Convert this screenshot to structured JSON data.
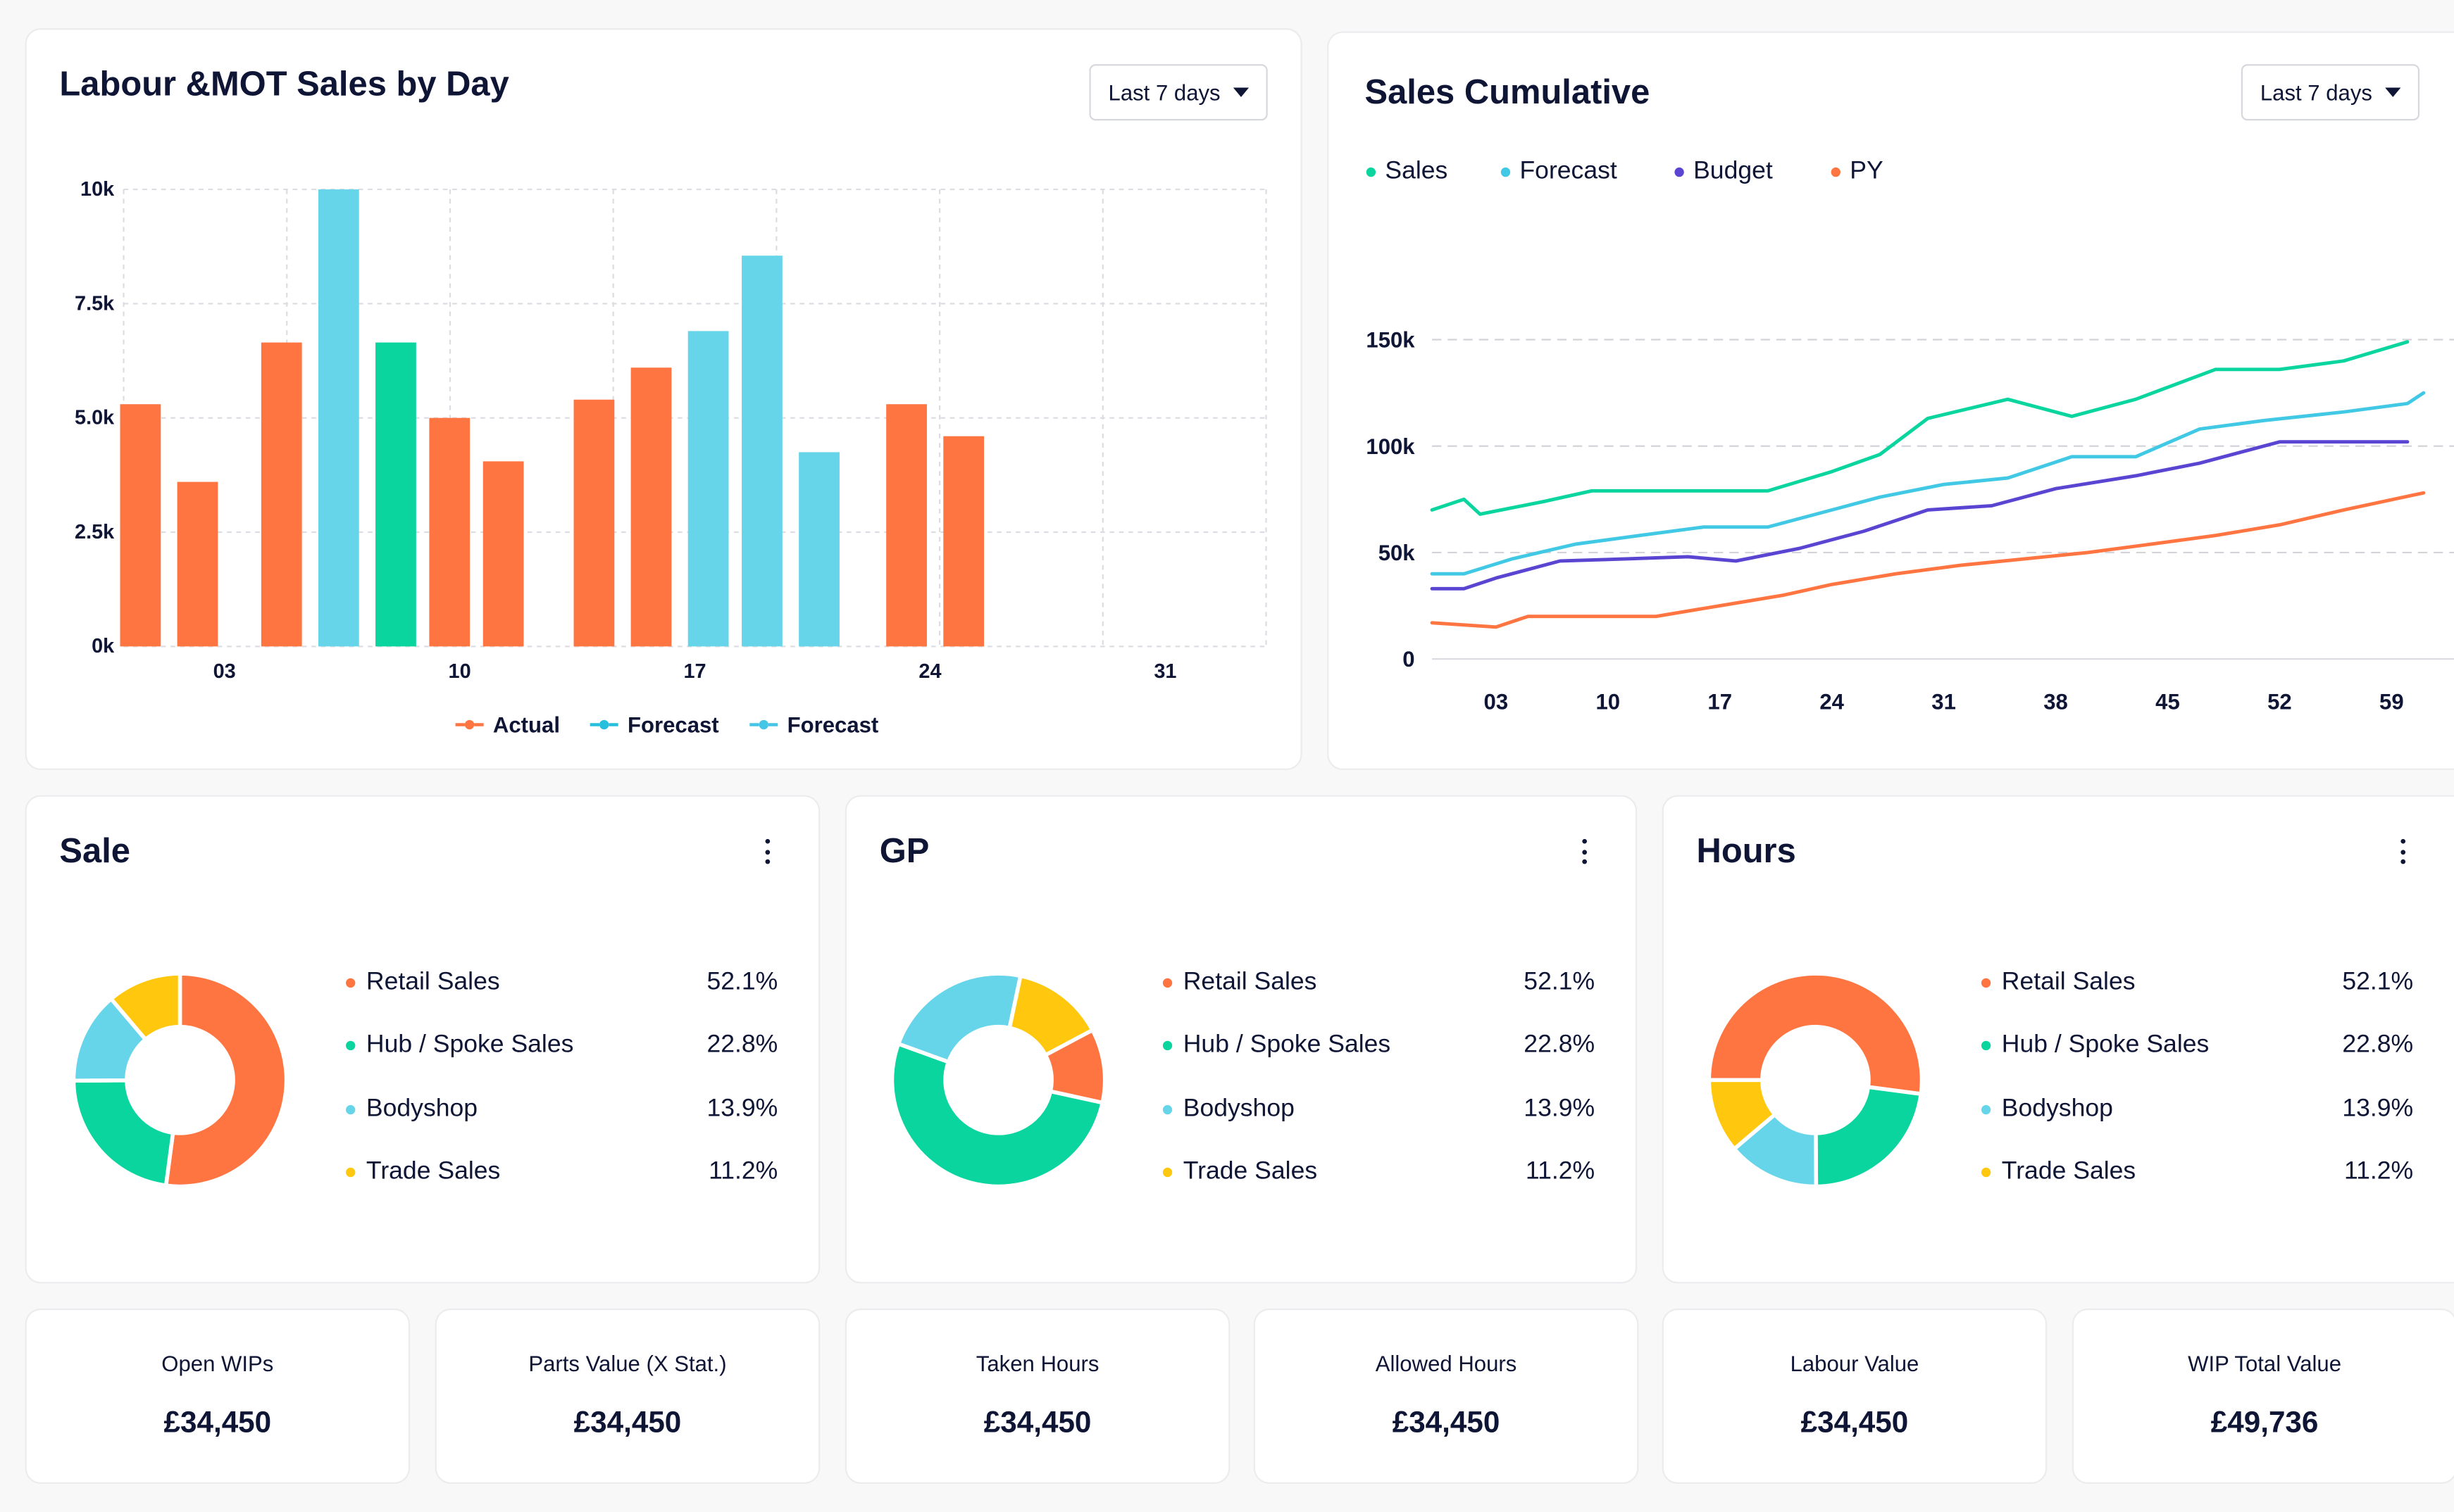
{
  "colors": {
    "orange": "#ff7541",
    "cyan": "#66d5ea",
    "green": "#0ad59e",
    "purple": "#5945d1",
    "yellow": "#ffc80f",
    "navy": "#0f1535"
  },
  "labour_card": {
    "title": "Labour &MOT Sales by Day",
    "dropdown_label": "Last 7 days",
    "legend": [
      {
        "label": "Actual",
        "color": "#ff7541"
      },
      {
        "label": "Forecast",
        "color": "#27bfdc"
      },
      {
        "label": "Forecast",
        "color": "#45c6e6"
      }
    ]
  },
  "cumulative_card": {
    "title": "Sales Cumulative",
    "dropdown_label": "Last 7 days",
    "legend": [
      {
        "label": "Sales",
        "color": "#0ad59e"
      },
      {
        "label": "Forecast",
        "color": "#40c8e4"
      },
      {
        "label": "Budget",
        "color": "#5945d1"
      },
      {
        "label": "PY",
        "color": "#ff7541"
      }
    ]
  },
  "donut_cards": [
    {
      "title": "Sale",
      "icon": "kebab-menu-icon"
    },
    {
      "title": "GP",
      "icon": "kebab-menu-icon"
    },
    {
      "title": "Hours",
      "icon": "kebab-menu-icon"
    }
  ],
  "donut_legend": [
    {
      "label": "Retail Sales",
      "value": "52.1%",
      "color": "#ff7541"
    },
    {
      "label": "Hub / Spoke Sales",
      "value": "22.8%",
      "color": "#0ad59e"
    },
    {
      "label": "Bodyshop",
      "value": "13.9%",
      "color": "#66d5ea"
    },
    {
      "label": "Trade Sales",
      "value": "11.2%",
      "color": "#ffc80f"
    }
  ],
  "stats": [
    {
      "label": "Open WIPs",
      "value": "£34,450"
    },
    {
      "label": "Parts Value (X Stat.)",
      "value": "£34,450"
    },
    {
      "label": "Taken Hours",
      "value": "£34,450"
    },
    {
      "label": "Allowed Hours",
      "value": "£34,450"
    },
    {
      "label": "Labour Value",
      "value": "£34,450"
    },
    {
      "label": "WIP Total Value",
      "value": "£49,736"
    }
  ],
  "chart_data": [
    {
      "type": "bar",
      "title": "Labour &MOT Sales by Day",
      "ylim": [
        0,
        10000
      ],
      "y_ticks": [
        "0k",
        "2.5k",
        "5.0k",
        "7.5k",
        "10k"
      ],
      "y_tick_values": [
        0,
        2500,
        5000,
        7500,
        10000
      ],
      "x_ticks": [
        "03",
        "10",
        "17",
        "24",
        "31"
      ],
      "x_tick_values": [
        3,
        10,
        17,
        24,
        31
      ],
      "xlim": [
        0,
        34
      ],
      "grid": true,
      "legend_position": "bottom",
      "bars": [
        {
          "x": 0.5,
          "value": 5300,
          "series": "Actual",
          "color": "#ff7541"
        },
        {
          "x": 2.2,
          "value": 3600,
          "series": "Actual",
          "color": "#ff7541"
        },
        {
          "x": 4.7,
          "value": 6650,
          "series": "Actual",
          "color": "#ff7541"
        },
        {
          "x": 6.4,
          "value": 10000,
          "series": "Forecast",
          "color": "#66d5ea"
        },
        {
          "x": 8.1,
          "value": 6650,
          "series": "Actual",
          "color": "#0ad59e"
        },
        {
          "x": 9.7,
          "value": 5000,
          "series": "Actual",
          "color": "#ff7541"
        },
        {
          "x": 11.3,
          "value": 4050,
          "series": "Actual",
          "color": "#ff7541"
        },
        {
          "x": 14.0,
          "value": 5400,
          "series": "Actual",
          "color": "#ff7541"
        },
        {
          "x": 15.7,
          "value": 6100,
          "series": "Actual",
          "color": "#ff7541"
        },
        {
          "x": 17.4,
          "value": 6900,
          "series": "Forecast",
          "color": "#66d5ea"
        },
        {
          "x": 19.0,
          "value": 8550,
          "series": "Forecast",
          "color": "#66d5ea"
        },
        {
          "x": 20.7,
          "value": 4250,
          "series": "Forecast",
          "color": "#66d5ea"
        },
        {
          "x": 23.3,
          "value": 5300,
          "series": "Actual",
          "color": "#ff7541"
        },
        {
          "x": 25.0,
          "value": 4600,
          "series": "Actual",
          "color": "#ff7541"
        }
      ]
    },
    {
      "type": "line",
      "title": "Sales Cumulative",
      "ylim": [
        0,
        150000
      ],
      "y_ticks": [
        "0",
        "50k",
        "100k",
        "150k"
      ],
      "y_tick_values": [
        0,
        50000,
        100000,
        150000
      ],
      "x_ticks": [
        "03",
        "10",
        "17",
        "24",
        "31",
        "38",
        "45",
        "52",
        "59"
      ],
      "x_tick_values": [
        3,
        10,
        17,
        24,
        31,
        38,
        45,
        52,
        59
      ],
      "xlim": [
        -1,
        63
      ],
      "grid": true,
      "legend_position": "top-left",
      "series": [
        {
          "name": "Sales",
          "color": "#0ad59e",
          "x": [
            -1,
            1,
            2,
            6,
            9,
            12,
            16,
            20,
            24,
            27,
            30,
            35,
            39,
            43,
            48,
            52,
            56,
            60
          ],
          "values": [
            70000,
            75000,
            68000,
            74000,
            79000,
            79000,
            79000,
            79000,
            88000,
            96000,
            113000,
            122000,
            114000,
            122000,
            136000,
            136000,
            140000,
            149000
          ]
        },
        {
          "name": "Forecast",
          "color": "#40c8e4",
          "x": [
            -1,
            1,
            4,
            8,
            12,
            16,
            20,
            24,
            27,
            31,
            35,
            39,
            43,
            47,
            51,
            56,
            60,
            61
          ],
          "values": [
            40000,
            40000,
            47000,
            54000,
            58000,
            62000,
            62000,
            70000,
            76000,
            82000,
            85000,
            95000,
            95000,
            108000,
            112000,
            116000,
            120000,
            125000
          ]
        },
        {
          "name": "Budget",
          "color": "#5945d1",
          "x": [
            -1,
            1,
            3,
            7,
            11,
            15,
            18,
            22,
            26,
            30,
            34,
            38,
            43,
            47,
            52,
            56,
            59,
            60
          ],
          "values": [
            33000,
            33000,
            38000,
            46000,
            47000,
            48000,
            46000,
            52000,
            60000,
            70000,
            72000,
            80000,
            86000,
            92000,
            102000,
            102000,
            102000,
            102000
          ]
        },
        {
          "name": "PY",
          "color": "#ff7541",
          "x": [
            -1,
            3,
            5,
            9,
            13,
            17,
            21,
            24,
            28,
            32,
            36,
            40,
            44,
            48,
            52,
            56,
            61
          ],
          "values": [
            17000,
            15000,
            20000,
            20000,
            20000,
            25000,
            30000,
            35000,
            40000,
            44000,
            47000,
            50000,
            54000,
            58000,
            63000,
            70000,
            78000
          ]
        }
      ]
    },
    {
      "type": "pie",
      "title": "Sale",
      "inner_radius_ratio": 0.5,
      "start_angle_deg": 0,
      "slices": [
        {
          "label": "Retail Sales",
          "value": 52.1,
          "color": "#ff7541"
        },
        {
          "label": "Hub / Spoke Sales",
          "value": 22.8,
          "color": "#0ad59e"
        },
        {
          "label": "Bodyshop",
          "value": 13.9,
          "color": "#66d5ea"
        },
        {
          "label": "Trade Sales",
          "value": 11.2,
          "color": "#ffc80f"
        }
      ]
    },
    {
      "type": "pie",
      "title": "GP",
      "inner_radius_ratio": 0.5,
      "start_angle_deg": 62,
      "slices": [
        {
          "label": "Retail Sales",
          "value": 11.2,
          "color": "#ff7541"
        },
        {
          "label": "Hub / Spoke Sales",
          "value": 52.1,
          "color": "#0ad59e"
        },
        {
          "label": "Bodyshop",
          "value": 22.8,
          "color": "#66d5ea"
        },
        {
          "label": "Trade Sales",
          "value": 13.9,
          "color": "#ffc80f"
        }
      ]
    },
    {
      "type": "pie",
      "title": "Hours",
      "inner_radius_ratio": 0.5,
      "start_angle_deg": -90,
      "slices": [
        {
          "label": "Retail Sales",
          "value": 52.1,
          "color": "#ff7541"
        },
        {
          "label": "Hub / Spoke Sales",
          "value": 22.8,
          "color": "#0ad59e"
        },
        {
          "label": "Bodyshop",
          "value": 13.9,
          "color": "#66d5ea"
        },
        {
          "label": "Trade Sales",
          "value": 11.2,
          "color": "#ffc80f"
        }
      ]
    }
  ]
}
